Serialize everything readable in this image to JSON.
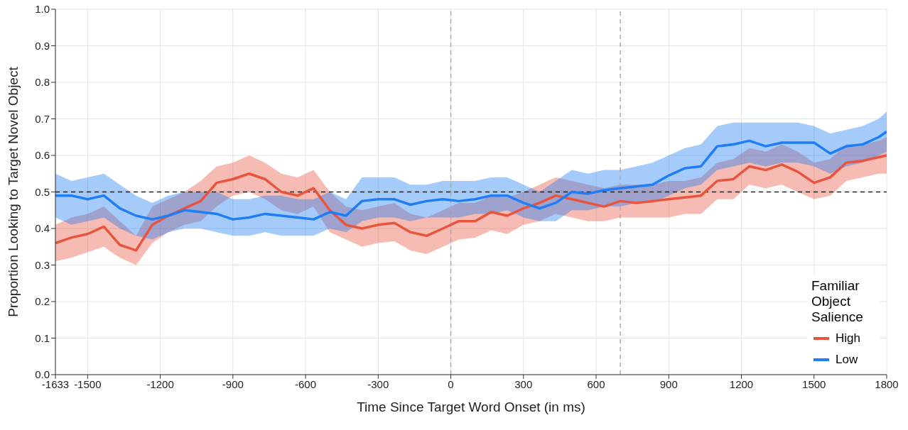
{
  "chart_data": {
    "type": "line",
    "xlabel": "Time Since Target Word Onset (in ms)",
    "ylabel": "Proportion Looking to Target Novel Object",
    "legend_title": "Familiar Object Salience",
    "legend": "bottom right",
    "grid": true,
    "marker": "none",
    "line_style": "solid",
    "x": [
      -1633,
      -1567,
      -1500,
      -1433,
      -1367,
      -1300,
      -1233,
      -1167,
      -1100,
      -1033,
      -967,
      -900,
      -833,
      -767,
      -700,
      -633,
      -567,
      -500,
      -433,
      -367,
      -300,
      -233,
      -167,
      -100,
      -33,
      33,
      100,
      167,
      233,
      300,
      367,
      433,
      500,
      567,
      633,
      700,
      767,
      833,
      900,
      967,
      1033,
      1100,
      1167,
      1233,
      1300,
      1367,
      1433,
      1500,
      1567,
      1633,
      1700,
      1767,
      1800
    ],
    "xlim": [
      -1633,
      1800
    ],
    "xticks": [
      -1633,
      -1500,
      -1200,
      -900,
      -600,
      -300,
      0,
      300,
      600,
      900,
      1200,
      1500,
      1800
    ],
    "ylim": [
      0,
      1
    ],
    "yticks": [
      {
        "value": 0,
        "label": "0.0"
      },
      0.1,
      0.2,
      0.3,
      0.4,
      0.5,
      0.6,
      0.7,
      0.8,
      0.9,
      {
        "value": 1,
        "label": "1.0"
      }
    ],
    "series": [
      {
        "name": "High",
        "color": "#e8553e",
        "values": [
          0.36,
          0.375,
          0.385,
          0.405,
          0.355,
          0.34,
          0.41,
          0.435,
          0.455,
          0.475,
          0.525,
          0.535,
          0.55,
          0.535,
          0.5,
          0.49,
          0.51,
          0.45,
          0.41,
          0.4,
          0.41,
          0.415,
          0.39,
          0.38,
          0.4,
          0.42,
          0.42,
          0.445,
          0.435,
          0.455,
          0.47,
          0.49,
          0.48,
          0.47,
          0.46,
          0.475,
          0.47,
          0.475,
          0.48,
          0.485,
          0.49,
          0.53,
          0.535,
          0.57,
          0.56,
          0.575,
          0.555,
          0.525,
          0.54,
          0.58,
          0.585,
          0.595,
          0.6
        ],
        "lower": [
          0.31,
          0.32,
          0.335,
          0.35,
          0.32,
          0.3,
          0.36,
          0.39,
          0.41,
          0.42,
          0.46,
          0.49,
          0.5,
          0.48,
          0.45,
          0.44,
          0.46,
          0.39,
          0.37,
          0.35,
          0.36,
          0.365,
          0.34,
          0.33,
          0.35,
          0.37,
          0.375,
          0.395,
          0.385,
          0.41,
          0.42,
          0.44,
          0.43,
          0.42,
          0.42,
          0.43,
          0.43,
          0.43,
          0.43,
          0.44,
          0.44,
          0.48,
          0.48,
          0.52,
          0.51,
          0.52,
          0.5,
          0.48,
          0.49,
          0.53,
          0.54,
          0.55,
          0.55
        ],
        "upper": [
          0.41,
          0.43,
          0.44,
          0.46,
          0.42,
          0.38,
          0.46,
          0.48,
          0.5,
          0.53,
          0.57,
          0.58,
          0.6,
          0.58,
          0.55,
          0.54,
          0.56,
          0.5,
          0.46,
          0.45,
          0.46,
          0.47,
          0.44,
          0.43,
          0.45,
          0.47,
          0.47,
          0.49,
          0.485,
          0.5,
          0.52,
          0.54,
          0.53,
          0.52,
          0.51,
          0.52,
          0.52,
          0.52,
          0.53,
          0.53,
          0.54,
          0.58,
          0.59,
          0.62,
          0.61,
          0.63,
          0.61,
          0.58,
          0.59,
          0.63,
          0.63,
          0.64,
          0.65
        ]
      },
      {
        "name": "Low",
        "color": "#1f7ef5",
        "values": [
          0.49,
          0.49,
          0.48,
          0.49,
          0.455,
          0.435,
          0.425,
          0.435,
          0.45,
          0.445,
          0.44,
          0.425,
          0.43,
          0.44,
          0.435,
          0.43,
          0.425,
          0.445,
          0.435,
          0.475,
          0.48,
          0.48,
          0.465,
          0.475,
          0.48,
          0.475,
          0.48,
          0.49,
          0.49,
          0.47,
          0.455,
          0.47,
          0.5,
          0.495,
          0.505,
          0.51,
          0.515,
          0.52,
          0.545,
          0.565,
          0.57,
          0.625,
          0.63,
          0.64,
          0.625,
          0.635,
          0.635,
          0.635,
          0.605,
          0.625,
          0.63,
          0.65,
          0.665
        ],
        "lower": [
          0.43,
          0.41,
          0.42,
          0.43,
          0.4,
          0.38,
          0.37,
          0.39,
          0.4,
          0.4,
          0.39,
          0.38,
          0.38,
          0.39,
          0.38,
          0.38,
          0.38,
          0.4,
          0.39,
          0.42,
          0.43,
          0.43,
          0.42,
          0.43,
          0.43,
          0.43,
          0.44,
          0.44,
          0.45,
          0.43,
          0.42,
          0.42,
          0.45,
          0.45,
          0.46,
          0.46,
          0.47,
          0.47,
          0.49,
          0.51,
          0.52,
          0.56,
          0.57,
          0.58,
          0.57,
          0.58,
          0.58,
          0.57,
          0.55,
          0.57,
          0.58,
          0.6,
          0.61
        ],
        "upper": [
          0.55,
          0.53,
          0.54,
          0.55,
          0.52,
          0.49,
          0.47,
          0.49,
          0.5,
          0.5,
          0.5,
          0.48,
          0.48,
          0.49,
          0.49,
          0.48,
          0.48,
          0.5,
          0.48,
          0.54,
          0.54,
          0.54,
          0.52,
          0.52,
          0.53,
          0.53,
          0.53,
          0.54,
          0.54,
          0.52,
          0.5,
          0.53,
          0.56,
          0.55,
          0.56,
          0.56,
          0.57,
          0.58,
          0.6,
          0.62,
          0.63,
          0.68,
          0.69,
          0.69,
          0.69,
          0.69,
          0.69,
          0.68,
          0.66,
          0.67,
          0.68,
          0.7,
          0.72
        ]
      }
    ],
    "ref_lines": [
      {
        "axis": "x",
        "value": 0,
        "color": "#aaaaaa",
        "line_style": "dashed"
      },
      {
        "axis": "x",
        "value": 700,
        "color": "#aaaaaa",
        "line_style": "dashed"
      },
      {
        "axis": "y",
        "value": 0.5,
        "color": "#222222",
        "line_style": "dashed"
      }
    ]
  }
}
